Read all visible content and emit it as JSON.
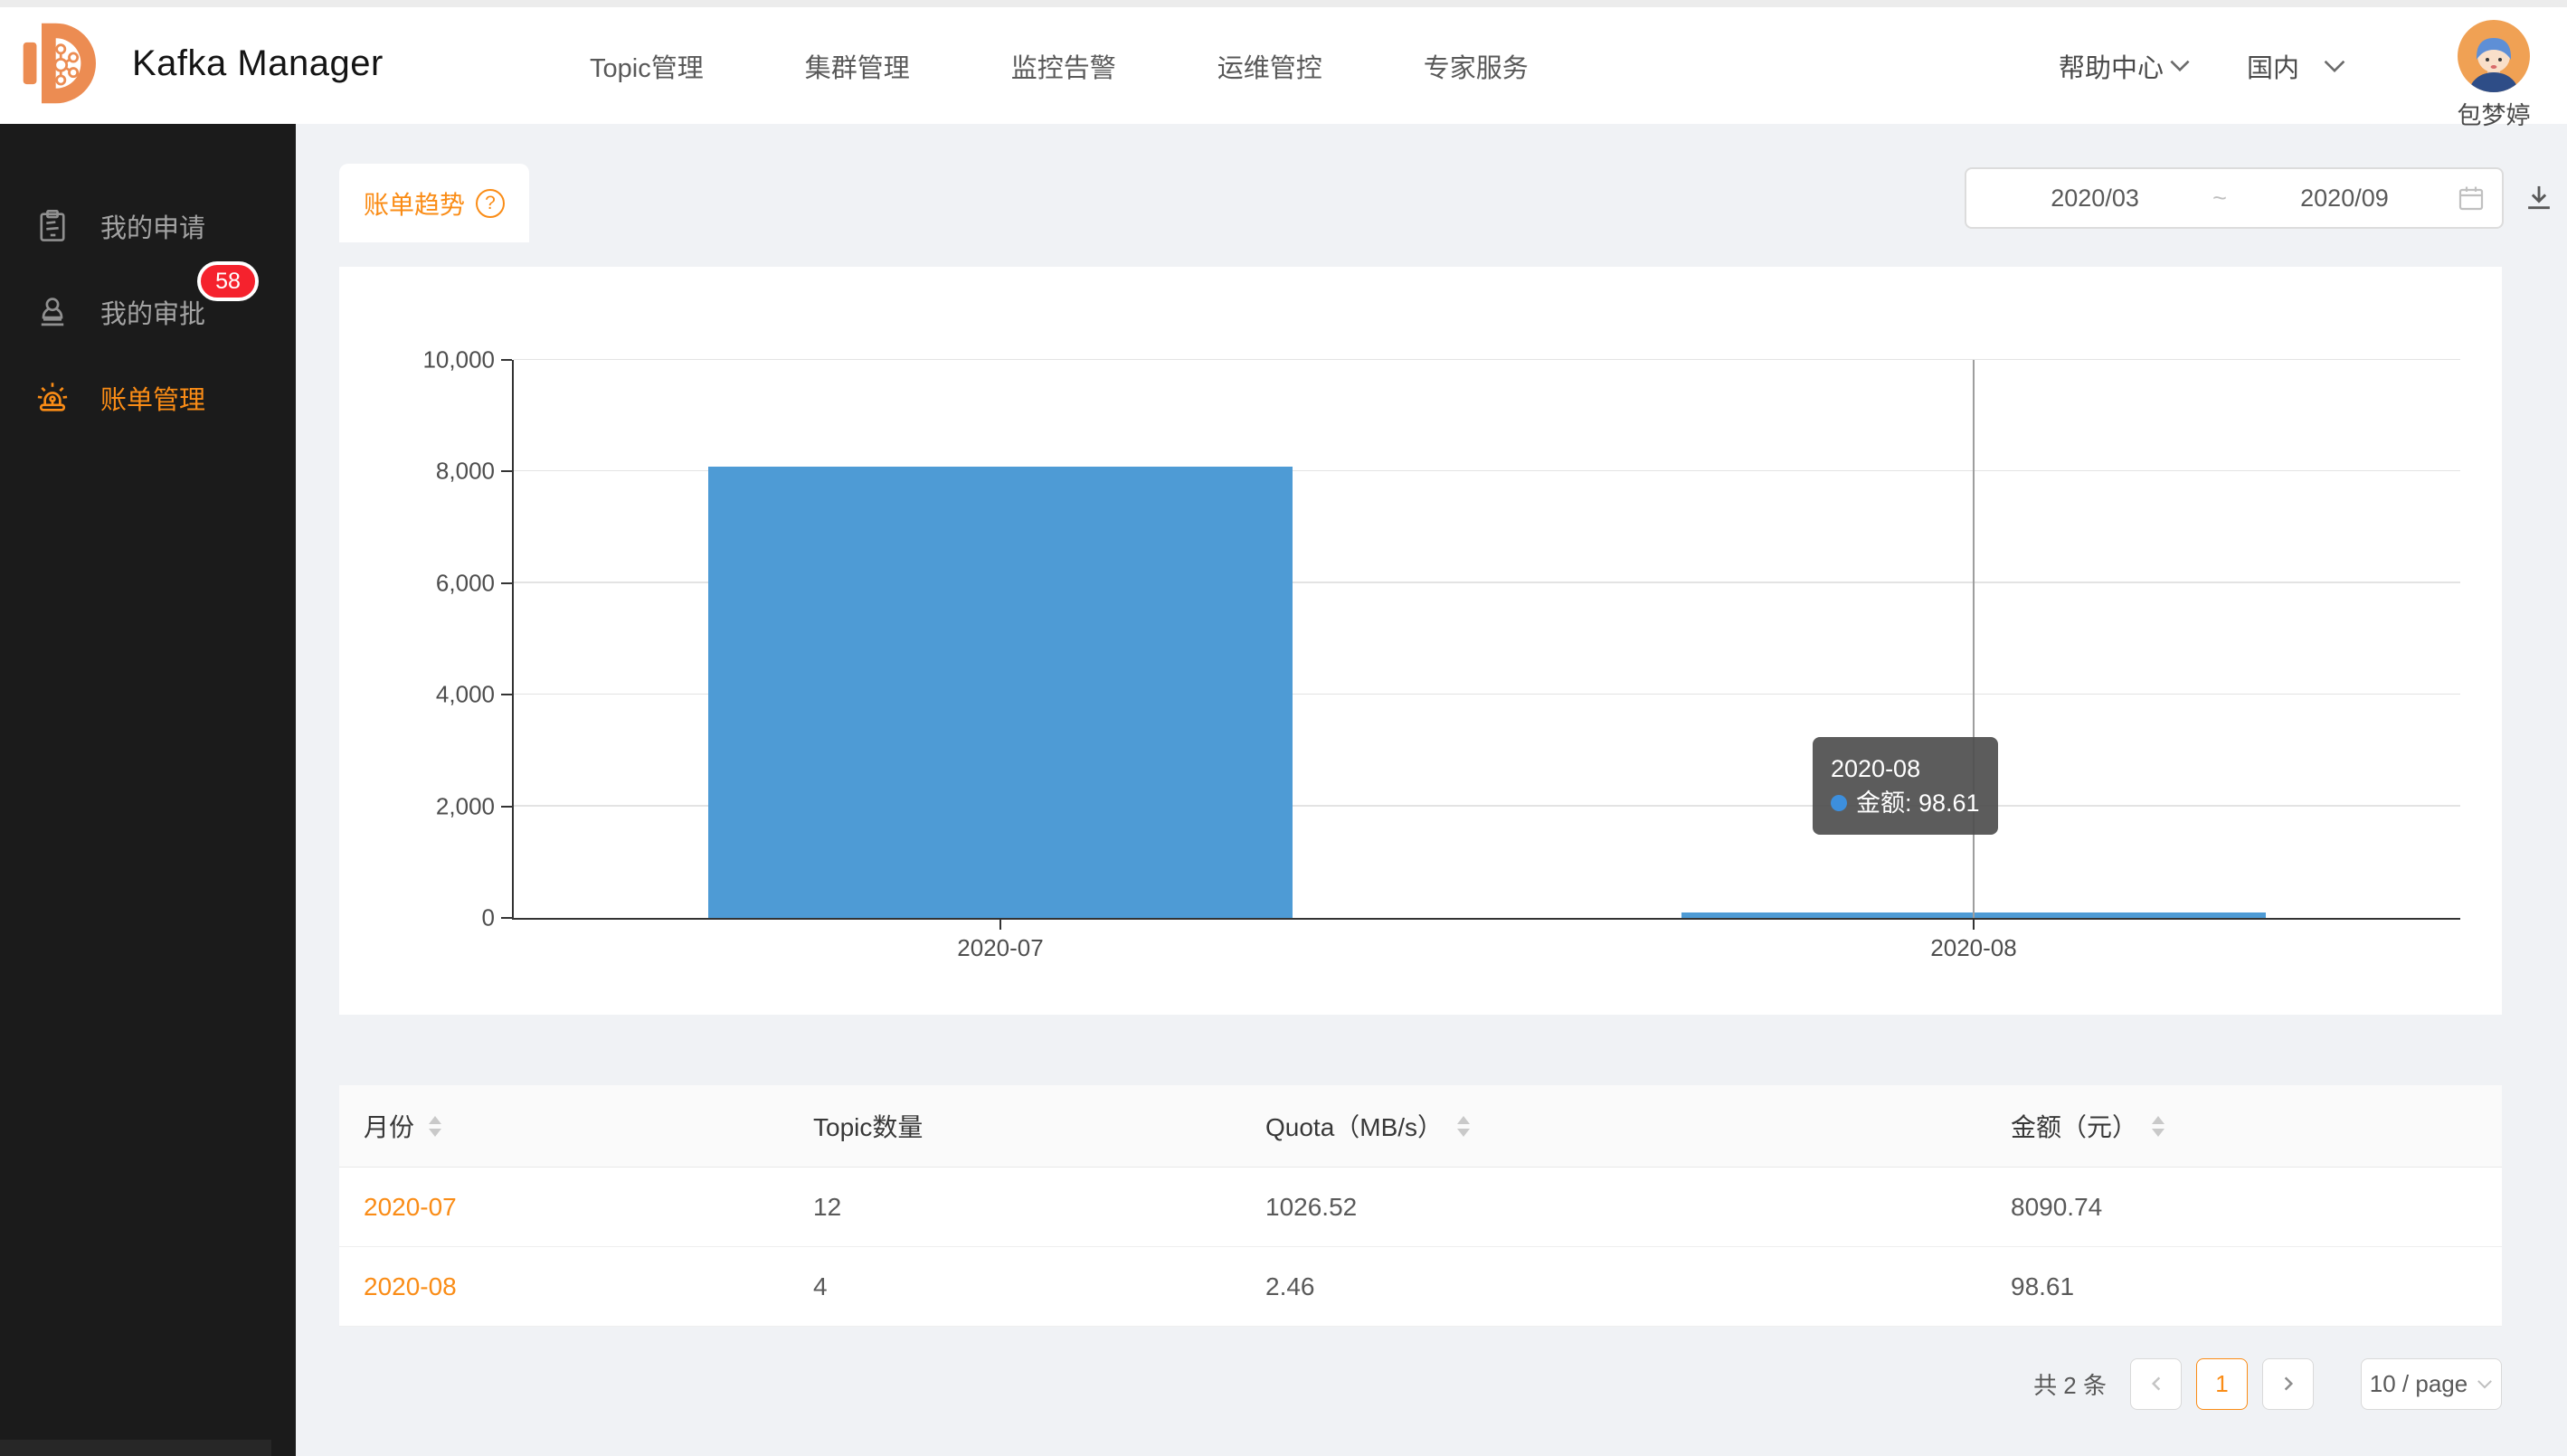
{
  "topbar": {
    "title": "Kafka Manager",
    "nav": [
      {
        "label": "Topic管理"
      },
      {
        "label": "集群管理"
      },
      {
        "label": "监控告警"
      },
      {
        "label": "运维管控"
      },
      {
        "label": "专家服务"
      }
    ],
    "help_label": "帮助中心",
    "region_label": "国内",
    "user_name": "包梦婷"
  },
  "sidebar": {
    "items": [
      {
        "label": "我的申请"
      },
      {
        "label": "我的审批",
        "badge": "58"
      },
      {
        "label": "账单管理",
        "active": true
      }
    ]
  },
  "toolbar": {
    "tab_label": "账单趋势",
    "help_glyph": "?",
    "date_start": "2020/03",
    "date_separator": "~",
    "date_end": "2020/09"
  },
  "chart_data": {
    "type": "bar",
    "title": "",
    "categories": [
      "2020-07",
      "2020-08"
    ],
    "series": [
      {
        "name": "金额",
        "values": [
          8090.74,
          98.61
        ]
      }
    ],
    "ylim": [
      0,
      10000
    ],
    "yticks": [
      0,
      2000,
      4000,
      6000,
      8000,
      10000
    ],
    "ytick_labels": [
      "0",
      "2,000",
      "4,000",
      "6,000",
      "8,000",
      "10,000"
    ],
    "bar_color": "#4E9BD5",
    "grid": true,
    "legend": "none",
    "tooltip": {
      "title": "2020-08",
      "text": "金额: 98.61"
    }
  },
  "table": {
    "columns": [
      {
        "label": "月份",
        "sortable": true
      },
      {
        "label": "Topic数量",
        "sortable": false
      },
      {
        "label": "Quota（MB/s）",
        "sortable": true
      },
      {
        "label": "金额（元）",
        "sortable": true
      }
    ],
    "rows": [
      {
        "month": "2020-07",
        "topics": "12",
        "quota": "1026.52",
        "amount": "8090.74"
      },
      {
        "month": "2020-08",
        "topics": "4",
        "quota": "2.46",
        "amount": "98.61"
      }
    ]
  },
  "pagination": {
    "total_label": "共 2 条",
    "current_page": "1",
    "page_size_label": "10 / page"
  },
  "colors": {
    "accent_orange": "#FA8C16",
    "bar_blue": "#4E9BD5",
    "badge_red": "#F5222D",
    "sidebar_bg": "#1B1B1B",
    "page_bg": "#F0F2F5",
    "tooltip_bg": "rgba(80,80,80,0.93)"
  }
}
